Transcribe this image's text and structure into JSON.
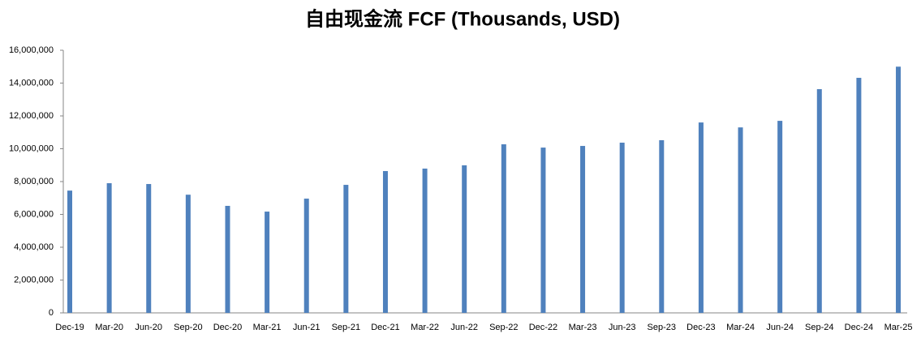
{
  "chart_data": {
    "type": "bar",
    "title": "自由现金流 FCF (Thousands, USD)",
    "categories": [
      "Dec-19",
      "Mar-20",
      "Jun-20",
      "Sep-20",
      "Dec-20",
      "Mar-21",
      "Jun-21",
      "Sep-21",
      "Dec-21",
      "Mar-22",
      "Jun-22",
      "Sep-22",
      "Dec-22",
      "Mar-23",
      "Jun-23",
      "Sep-23",
      "Dec-23",
      "Mar-24",
      "Jun-24",
      "Sep-24",
      "Dec-24",
      "Mar-25"
    ],
    "values": [
      7450000,
      7900000,
      7850000,
      7200000,
      6520000,
      6170000,
      6960000,
      7800000,
      8640000,
      8790000,
      8990000,
      10270000,
      10070000,
      10170000,
      10370000,
      10520000,
      11600000,
      11300000,
      11700000,
      13630000,
      14320000,
      15000000
    ],
    "color": "#4f81bd",
    "ylim": [
      0,
      16000000
    ],
    "yticks": [
      0,
      {
        "value": 2000000,
        "label": "2,000,000"
      },
      {
        "value": 4000000,
        "label": "4,000,000"
      },
      {
        "value": 6000000,
        "label": "6,000,000"
      },
      {
        "value": 8000000,
        "label": "8,000,000"
      },
      {
        "value": 10000000,
        "label": "10,000,000"
      },
      {
        "value": 12000000,
        "label": "12,000,000"
      },
      {
        "value": 14000000,
        "label": "14,000,000"
      },
      {
        "value": 16000000,
        "label": "16,000,000"
      }
    ],
    "grid": false
  }
}
